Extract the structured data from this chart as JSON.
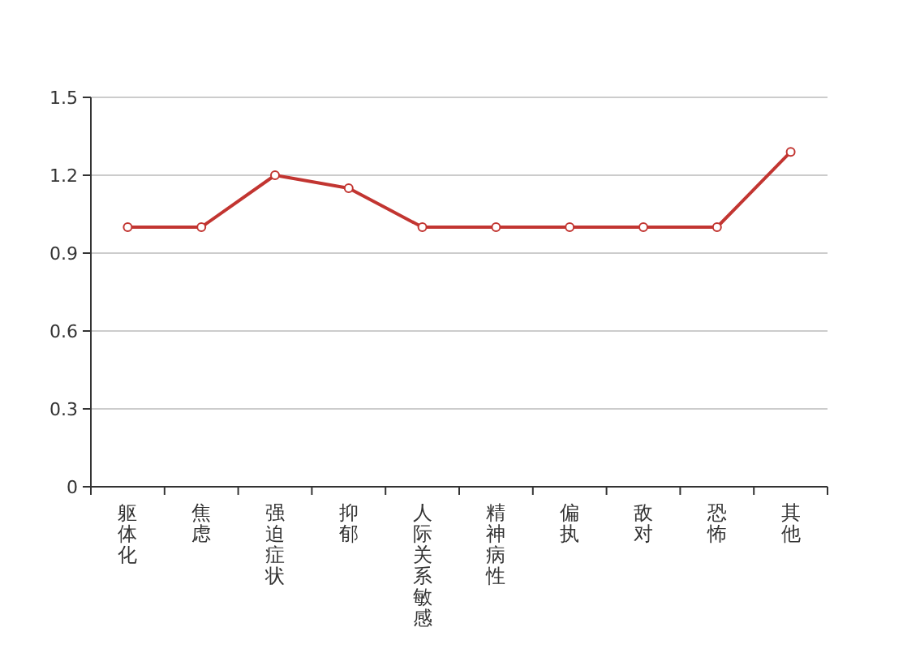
{
  "chart_data": {
    "type": "line",
    "categories": [
      "躯体化",
      "焦虑",
      "强迫症状",
      "抑郁",
      "人际关系敏感",
      "精神病性",
      "偏执",
      "敌对",
      "恐怖",
      "其他"
    ],
    "series": [
      {
        "color": "#c23531",
        "values": [
          1,
          1,
          1.2,
          1.15,
          1,
          1,
          1,
          1,
          1,
          1.29
        ]
      }
    ],
    "ylim": [
      0,
      1.5
    ],
    "yticks": [
      0,
      0.3,
      0.6,
      0.9,
      1.2,
      1.5
    ],
    "grid": "y",
    "marker": "circle",
    "line_style": "solid"
  }
}
